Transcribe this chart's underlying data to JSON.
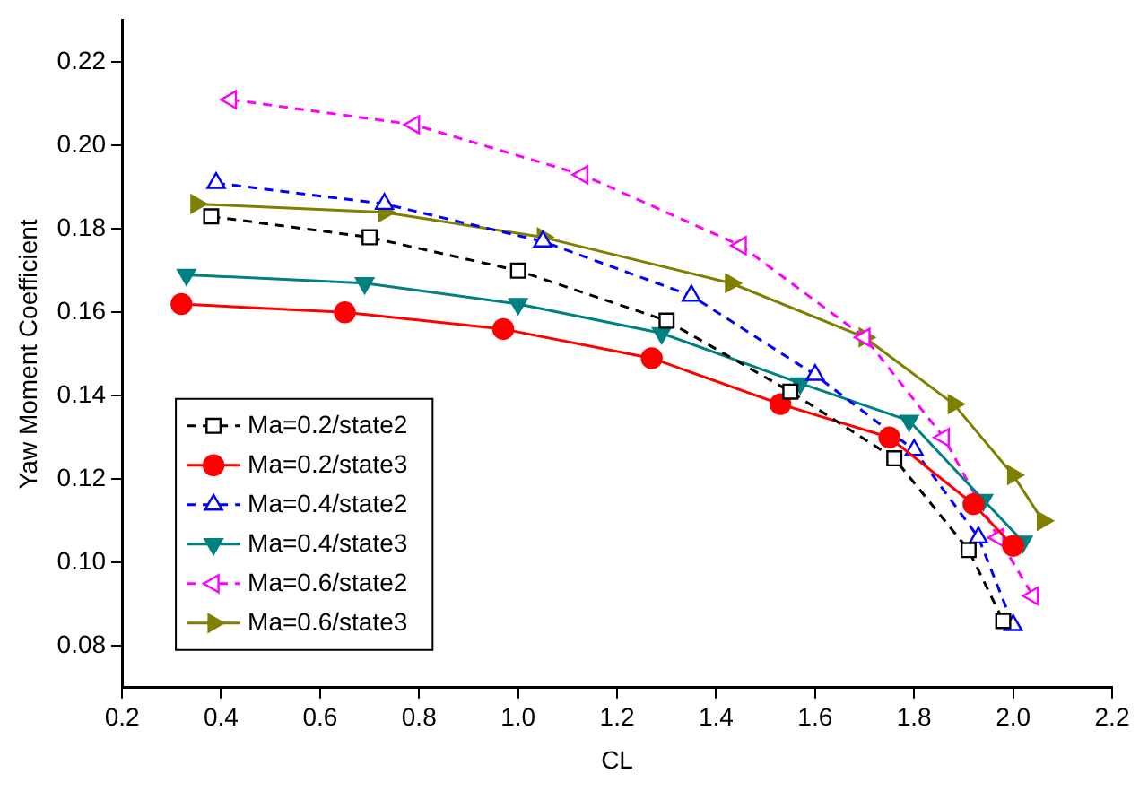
{
  "chart_data": {
    "type": "line",
    "xlabel": "CL",
    "ylabel": "Yaw Moment Coefficient",
    "xlim": [
      0.2,
      2.2
    ],
    "xticks": [
      0.2,
      0.4,
      0.6,
      0.8,
      {
        "value": 1,
        "label": "1.0"
      },
      1.2,
      1.4,
      1.6,
      1.8,
      {
        "value": 2,
        "label": "2.0"
      },
      2.2
    ],
    "ylim": [
      0.07,
      0.23
    ],
    "yticks": [
      0.08,
      {
        "value": 0.1,
        "label": "0.10"
      },
      0.12,
      0.14,
      0.16,
      0.18,
      {
        "value": 0.2,
        "label": "0.20"
      },
      0.22
    ],
    "grid": false,
    "legend": "left",
    "series": [
      {
        "name": "Ma=0.2/state2",
        "color": "#000000",
        "marker": "square",
        "line_style": "dashed",
        "x": [
          0.38,
          0.7,
          1.0,
          1.3,
          1.55,
          1.76,
          1.91,
          1.98
        ],
        "values": [
          0.183,
          0.178,
          0.17,
          0.158,
          0.141,
          0.125,
          0.103,
          0.086
        ]
      },
      {
        "name": "Ma=0.2/state3",
        "color": "#ff0000",
        "marker": "circle",
        "line_style": "solid",
        "x": [
          0.32,
          0.65,
          0.97,
          1.27,
          1.53,
          1.75,
          1.92,
          2.0
        ],
        "values": [
          0.162,
          0.16,
          0.156,
          0.149,
          0.138,
          0.13,
          0.114,
          0.104
        ]
      },
      {
        "name": "Ma=0.4/state2",
        "color": "#0000ff",
        "marker": "triangle",
        "line_style": "dashed",
        "x": [
          0.39,
          0.73,
          1.05,
          1.35,
          1.6,
          1.8,
          1.93,
          2.0
        ],
        "values": [
          0.191,
          0.186,
          0.177,
          0.164,
          0.145,
          0.127,
          0.106,
          0.085
        ]
      },
      {
        "name": "Ma=0.4/state3",
        "color": "#008080",
        "marker": "triangle-down",
        "line_style": "solid",
        "x": [
          0.33,
          0.69,
          1.0,
          1.29,
          1.57,
          1.79,
          1.94,
          2.02
        ],
        "values": [
          0.169,
          0.167,
          0.162,
          0.155,
          0.143,
          0.134,
          0.115,
          0.105
        ]
      },
      {
        "name": "Ma=0.6/state2",
        "color": "#ff00ff",
        "marker": "triangle-left",
        "line_style": "dashed",
        "x": [
          0.42,
          0.79,
          1.13,
          1.45,
          1.7,
          1.86,
          1.97,
          2.04
        ],
        "values": [
          0.211,
          0.205,
          0.193,
          0.176,
          0.154,
          0.13,
          0.106,
          0.092
        ]
      },
      {
        "name": "Ma=0.6/state3",
        "color": "#808000",
        "marker": "triangle-right",
        "line_style": "solid",
        "x": [
          0.35,
          0.73,
          1.05,
          1.43,
          1.7,
          1.88,
          2.0,
          2.06
        ],
        "values": [
          0.186,
          0.184,
          0.178,
          0.167,
          0.154,
          0.138,
          0.121,
          0.11
        ]
      }
    ]
  }
}
